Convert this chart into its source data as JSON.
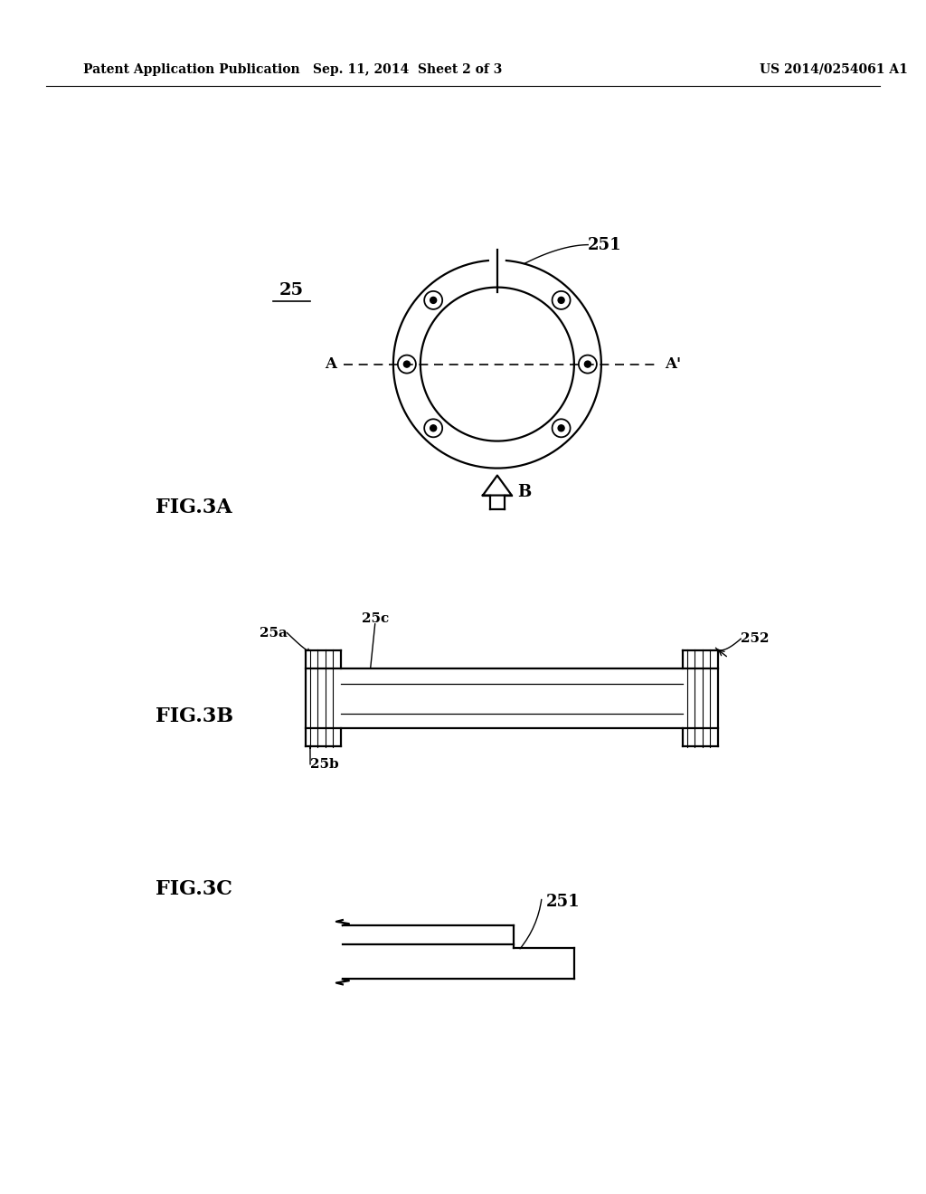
{
  "bg_color": "#ffffff",
  "line_color": "#000000",
  "header_left": "Patent Application Publication",
  "header_center": "Sep. 11, 2014  Sheet 2 of 3",
  "header_right": "US 2014/0254061 A1",
  "fig3a_label": "FIG.3A",
  "fig3b_label": "FIG.3B",
  "fig3c_label": "FIG.3C",
  "label_25": "25",
  "label_251_top": "251",
  "label_251_bot": "251",
  "label_252": "252",
  "label_25a": "25a",
  "label_25b": "25b",
  "label_25c": "25c",
  "label_A": "A",
  "label_Ap": "A'",
  "label_B": "B"
}
